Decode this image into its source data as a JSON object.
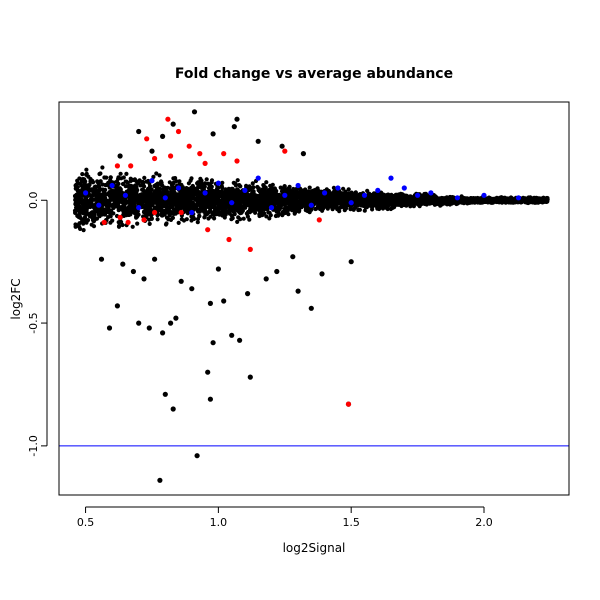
{
  "chart_data": {
    "type": "scatter",
    "title": "Fold change vs average abundance",
    "xlabel": "log2Signal",
    "ylabel": "log2FC",
    "xlim": [
      0.4,
      2.32
    ],
    "ylim": [
      -1.2,
      0.4
    ],
    "x_ticks": [
      0.5,
      1.0,
      1.5,
      2.0
    ],
    "x_tick_labels": [
      "0.5",
      "1.0",
      "1.5",
      "2.0"
    ],
    "y_ticks": [
      -1.0,
      -0.5,
      0.0
    ],
    "y_tick_labels": [
      "-1.0",
      "-0.5",
      "0.0"
    ],
    "reference_line": {
      "y": -1.0,
      "color": "#0000ff"
    },
    "grid": false,
    "colors": {
      "black": "#000000",
      "blue": "#0000ff",
      "red": "#ff0000"
    },
    "series": [
      {
        "color": "black",
        "points": [
          [
            0.78,
            -1.14
          ],
          [
            0.92,
            -1.04
          ],
          [
            0.8,
            -0.79
          ],
          [
            0.83,
            -0.85
          ],
          [
            1.49,
            -0.83
          ],
          [
            0.97,
            -0.81
          ],
          [
            0.96,
            -0.7
          ],
          [
            1.12,
            -0.72
          ],
          [
            0.98,
            -0.58
          ],
          [
            1.05,
            -0.55
          ],
          [
            1.08,
            -0.57
          ],
          [
            0.59,
            -0.52
          ],
          [
            0.62,
            -0.43
          ],
          [
            0.7,
            -0.5
          ],
          [
            0.74,
            -0.52
          ],
          [
            0.79,
            -0.54
          ],
          [
            0.82,
            -0.5
          ],
          [
            0.84,
            -0.48
          ],
          [
            1.35,
            -0.44
          ],
          [
            1.11,
            -0.38
          ],
          [
            1.3,
            -0.37
          ],
          [
            0.97,
            -0.42
          ],
          [
            1.02,
            -0.41
          ],
          [
            0.86,
            -0.33
          ],
          [
            0.9,
            -0.36
          ],
          [
            0.72,
            -0.32
          ],
          [
            0.68,
            -0.29
          ],
          [
            1.22,
            -0.29
          ],
          [
            1.18,
            -0.32
          ],
          [
            1.39,
            -0.3
          ],
          [
            0.56,
            -0.24
          ],
          [
            0.64,
            -0.26
          ],
          [
            0.76,
            -0.24
          ],
          [
            1.0,
            -0.28
          ],
          [
            1.5,
            -0.25
          ],
          [
            1.28,
            -0.23
          ],
          [
            0.83,
            0.31
          ],
          [
            0.79,
            0.26
          ],
          [
            0.7,
            0.28
          ],
          [
            0.91,
            0.36
          ],
          [
            1.07,
            0.33
          ],
          [
            1.06,
            0.3
          ],
          [
            1.24,
            0.22
          ],
          [
            0.63,
            0.18
          ],
          [
            0.75,
            0.2
          ],
          [
            0.98,
            0.27
          ],
          [
            1.32,
            0.19
          ],
          [
            1.15,
            0.24
          ]
        ]
      },
      {
        "color": "red",
        "points": [
          [
            1.49,
            -0.83
          ],
          [
            0.81,
            0.33
          ],
          [
            0.85,
            0.28
          ],
          [
            0.73,
            0.25
          ],
          [
            0.89,
            0.22
          ],
          [
            1.25,
            0.2
          ],
          [
            0.93,
            0.19
          ],
          [
            1.02,
            0.19
          ],
          [
            0.62,
            0.14
          ],
          [
            0.67,
            0.14
          ],
          [
            0.76,
            0.17
          ],
          [
            0.82,
            0.18
          ],
          [
            1.07,
            0.16
          ],
          [
            0.95,
            0.15
          ],
          [
            0.66,
            -0.09
          ],
          [
            0.57,
            -0.09
          ],
          [
            0.63,
            -0.07
          ],
          [
            0.72,
            -0.08
          ],
          [
            0.96,
            -0.12
          ],
          [
            1.04,
            -0.16
          ],
          [
            1.12,
            -0.2
          ],
          [
            0.76,
            -0.05
          ],
          [
            1.38,
            -0.08
          ],
          [
            0.86,
            -0.05
          ]
        ]
      },
      {
        "color": "blue",
        "points": [
          [
            0.5,
            0.03
          ],
          [
            0.55,
            -0.02
          ],
          [
            0.6,
            0.06
          ],
          [
            0.65,
            0.02
          ],
          [
            0.7,
            -0.03
          ],
          [
            0.75,
            0.08
          ],
          [
            0.8,
            0.01
          ],
          [
            0.85,
            0.05
          ],
          [
            0.9,
            -0.05
          ],
          [
            0.95,
            0.03
          ],
          [
            1.0,
            0.07
          ],
          [
            1.05,
            -0.01
          ],
          [
            1.1,
            0.04
          ],
          [
            1.15,
            0.09
          ],
          [
            1.2,
            -0.03
          ],
          [
            1.25,
            0.02
          ],
          [
            1.3,
            0.06
          ],
          [
            1.35,
            -0.02
          ],
          [
            1.4,
            0.03
          ],
          [
            1.45,
            0.05
          ],
          [
            1.5,
            -0.01
          ],
          [
            1.55,
            0.02
          ],
          [
            1.6,
            0.04
          ],
          [
            1.65,
            0.09
          ],
          [
            1.7,
            0.05
          ],
          [
            1.75,
            0.02
          ],
          [
            1.8,
            0.03
          ],
          [
            1.9,
            0.01
          ],
          [
            2.0,
            0.02
          ],
          [
            2.13,
            0.01
          ]
        ]
      }
    ]
  }
}
